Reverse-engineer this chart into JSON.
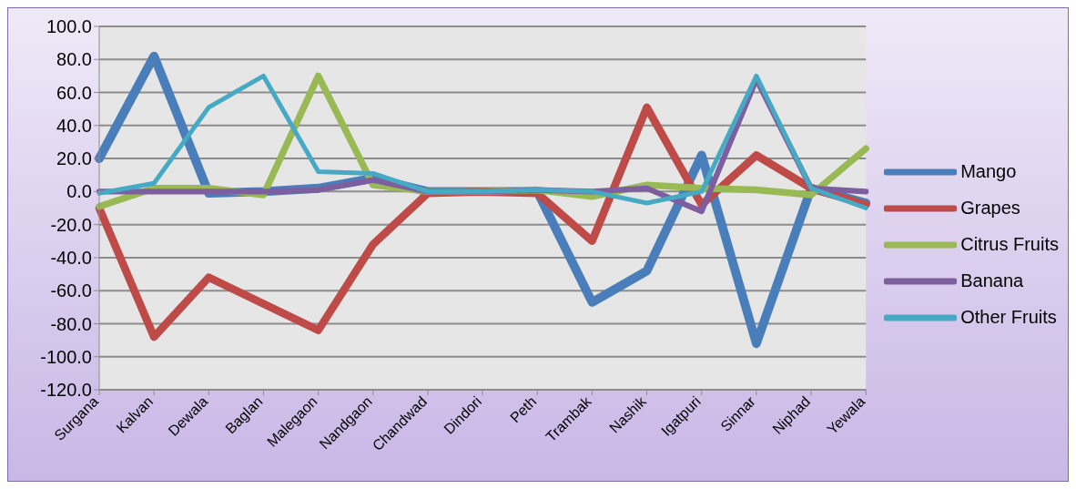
{
  "chart_data": {
    "type": "line",
    "categories": [
      "Surgana",
      "Kalvan",
      "Dewala",
      "Baglan",
      "Malegaon",
      "Nandgaon",
      "Chandwad",
      "Dindori",
      "Peth",
      "Trambak",
      "Nashik",
      "Igatpuri",
      "Sinnar",
      "Niphad",
      "Yewala"
    ],
    "series": [
      {
        "name": "Mango",
        "color": "#4a7ebb",
        "values": [
          20,
          82,
          -1,
          0,
          2,
          8,
          0,
          0,
          0,
          -67,
          -48,
          22,
          -92,
          2,
          -7
        ]
      },
      {
        "name": "Grapes",
        "color": "#be4b48",
        "values": [
          -10,
          -88,
          -52,
          -68,
          -84,
          -32,
          -1,
          0,
          -1,
          -30,
          51,
          -8,
          22,
          2,
          -8
        ]
      },
      {
        "name": "Citrus Fruits",
        "color": "#98b954",
        "values": [
          -9,
          2,
          2,
          -2,
          70,
          4,
          0,
          0,
          1,
          -3,
          4,
          2,
          1,
          -2,
          26
        ]
      },
      {
        "name": "Banana",
        "color": "#7d5fa0",
        "values": [
          0,
          0,
          0,
          0,
          1,
          7,
          0,
          0,
          1,
          0,
          2,
          -12,
          68,
          2,
          0
        ]
      },
      {
        "name": "Other Fruits",
        "color": "#46aac5",
        "values": [
          -1,
          5,
          51,
          70,
          12,
          11,
          0,
          0,
          1,
          0,
          -7,
          0,
          70,
          2,
          -10
        ]
      }
    ],
    "ylim": [
      -120,
      100
    ],
    "yticks": [
      {
        "value": -120,
        "label": "-120.0"
      },
      {
        "value": -100,
        "label": "-100.0"
      },
      {
        "value": -80,
        "label": "-80.0"
      },
      {
        "value": -60,
        "label": "-60.0"
      },
      {
        "value": -40,
        "label": "-40.0"
      },
      {
        "value": -20,
        "label": "-20.0"
      },
      {
        "value": 0,
        "label": "0.0"
      },
      {
        "value": 20,
        "label": "20.0"
      },
      {
        "value": 40,
        "label": "40.0"
      },
      {
        "value": 60,
        "label": "60.0"
      },
      {
        "value": 80,
        "label": "80.0"
      },
      {
        "value": 100,
        "label": "100.0"
      }
    ],
    "grid": "y",
    "legend": "right",
    "marker": "none",
    "line_style": "solid"
  }
}
